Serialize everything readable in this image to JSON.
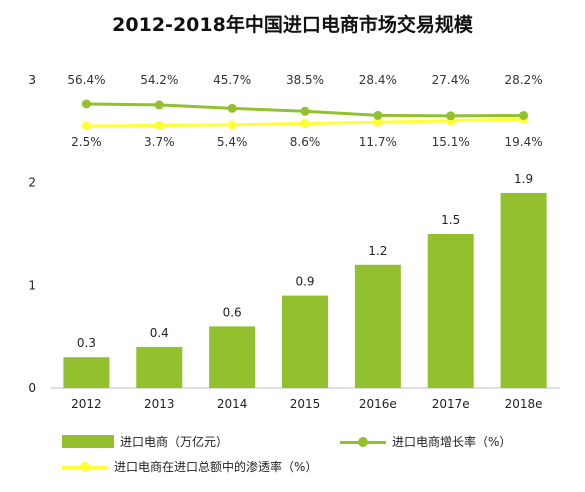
{
  "chart_data": {
    "title": "2012-2018年中国进口电商市场交易规模",
    "type": "bar",
    "categories": [
      "2012",
      "2013",
      "2014",
      "2015",
      "2016e",
      "2017e",
      "2018e"
    ],
    "y_ticks": [
      "0",
      "1",
      "2",
      "3"
    ],
    "ylim": [
      0,
      3
    ],
    "grid": false,
    "legend_position": "bottom",
    "series": [
      {
        "name": "进口电商（万亿元）",
        "type": "bar",
        "color": "#92c02e",
        "values": [
          0.3,
          0.4,
          0.6,
          0.9,
          1.2,
          1.5,
          1.9
        ],
        "value_labels": [
          "0.3",
          "0.4",
          "0.6",
          "0.9",
          "1.2",
          "1.5",
          "1.9"
        ]
      },
      {
        "name": "进口电商增长率（%）",
        "type": "line",
        "color": "#92c02e",
        "values": [
          56.4,
          54.2,
          45.7,
          38.5,
          28.4,
          27.4,
          28.2
        ],
        "value_labels": [
          "56.4%",
          "54.2%",
          "45.7%",
          "38.5%",
          "28.4%",
          "27.4%",
          "28.2%"
        ]
      },
      {
        "name": "进口电商在进口总额中的渗透率（%）",
        "type": "line",
        "color": "#ffff33",
        "values": [
          2.5,
          3.7,
          5.4,
          8.6,
          11.7,
          15.1,
          19.4
        ],
        "value_labels": [
          "2.5%",
          "3.7%",
          "5.4%",
          "8.6%",
          "11.7%",
          "15.1%",
          "19.4%"
        ]
      }
    ]
  }
}
